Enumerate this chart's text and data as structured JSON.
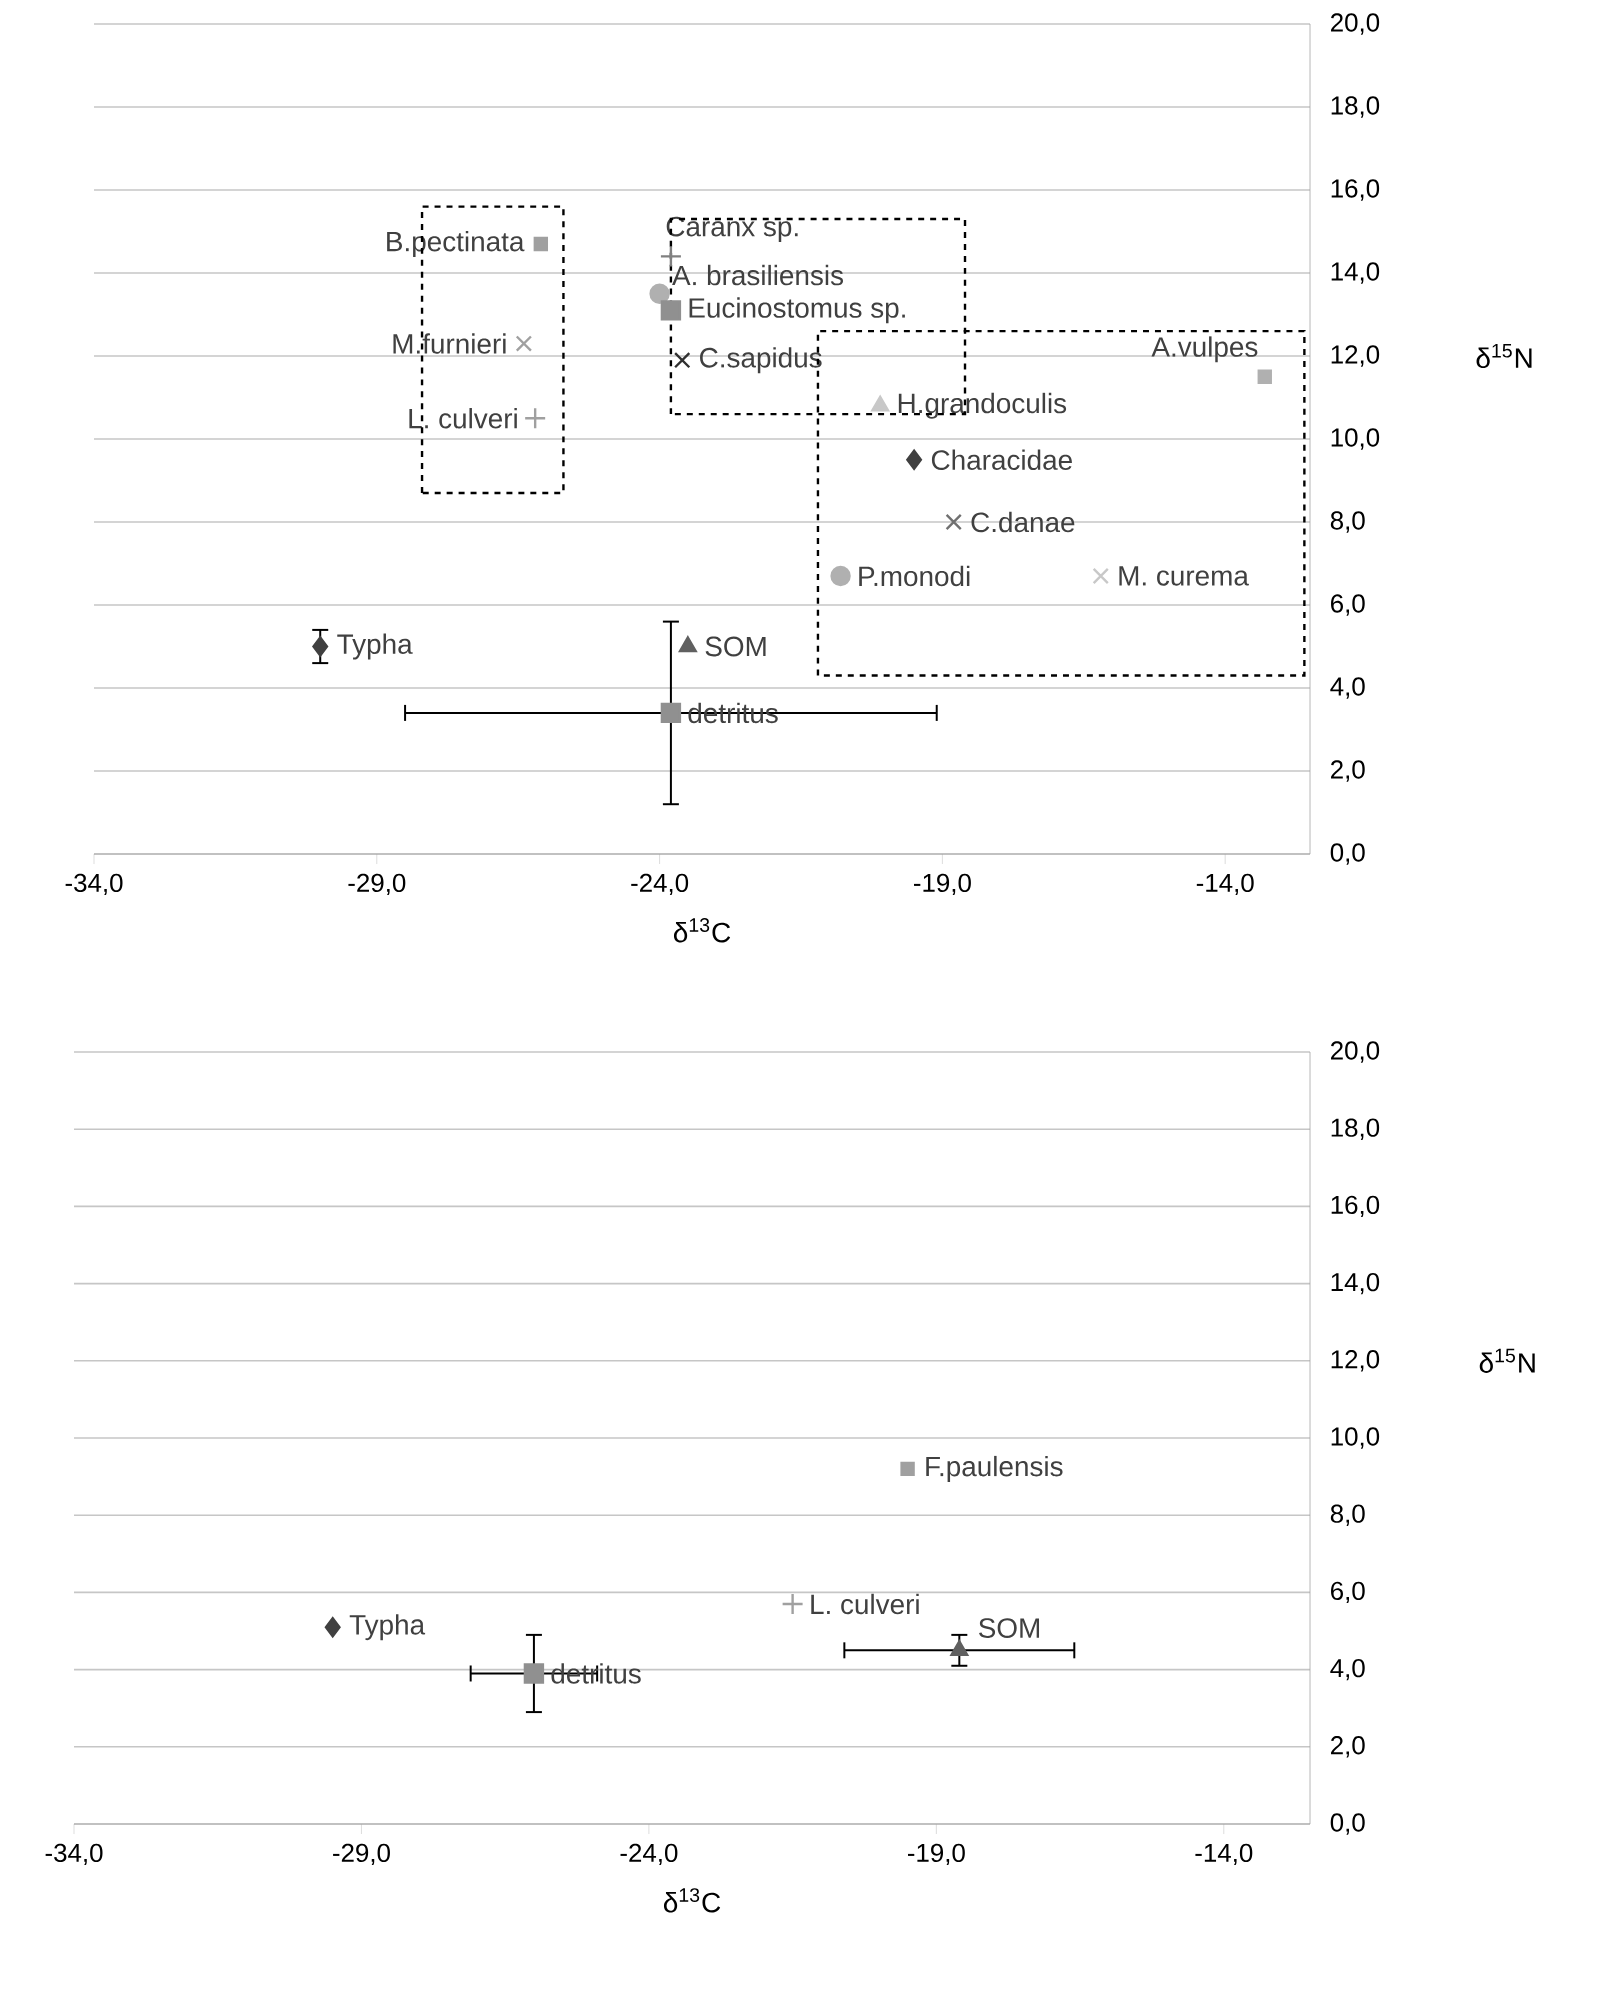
{
  "chart_data": [
    {
      "type": "scatter",
      "xlabel": "δ$^{13}$C",
      "ylabel": "δ$^{15}$N",
      "grid": "y",
      "xlim": [
        -34,
        -12.5
      ],
      "ylim": [
        0,
        20
      ],
      "xticks": [
        {
          "value": -34,
          "label": "-34,0"
        },
        {
          "value": -29,
          "label": "-29,0"
        },
        {
          "value": -24,
          "label": "-24,0"
        },
        {
          "value": -19,
          "label": "-19,0"
        },
        {
          "value": -14,
          "label": "-14,0"
        }
      ],
      "yticks": [
        {
          "value": 0,
          "label": "0,0"
        },
        {
          "value": 2,
          "label": "2,0"
        },
        {
          "value": 4,
          "label": "4,0"
        },
        {
          "value": 6,
          "label": "6,0"
        },
        {
          "value": 8,
          "label": "8,0"
        },
        {
          "value": 10,
          "label": "10,0"
        },
        {
          "value": 12,
          "label": "12,0"
        },
        {
          "value": 14,
          "label": "14,0"
        },
        {
          "value": 16,
          "label": "16,0"
        },
        {
          "value": 18,
          "label": "18,0"
        },
        {
          "value": 20,
          "label": "20,0"
        }
      ],
      "series": [
        {
          "name": "Typha",
          "color": "#404040",
          "marker": "diamond",
          "x": [
            -30.0
          ],
          "values": [
            5.0
          ],
          "errors": [
            0.4
          ]
        },
        {
          "name": "SOM",
          "color": "#606060",
          "marker": "triangle",
          "x": [
            -23.5
          ],
          "values": [
            5.0
          ]
        },
        {
          "name": "detritus",
          "color": "#909090",
          "marker": "square",
          "x": [
            -23.8
          ],
          "values": [
            3.4
          ],
          "errors": [
            2.2
          ],
          "xerrors": [
            4.7
          ]
        },
        {
          "name": "B.pectinata",
          "color": "#a0a0a0",
          "marker": "square",
          "x": [
            -26.1
          ],
          "values": [
            14.7
          ]
        },
        {
          "name": "M.furnieri",
          "color": "#a0a0a0",
          "marker": "cross",
          "x": [
            -26.4
          ],
          "values": [
            12.3
          ]
        },
        {
          "name": "L. culveri",
          "color": "#a0a0a0",
          "marker": "plus",
          "x": [
            -26.2
          ],
          "values": [
            10.5
          ]
        },
        {
          "name": "Caranx sp.",
          "color": "#808080",
          "marker": "plus",
          "x": [
            -23.8
          ],
          "values": [
            14.4
          ]
        },
        {
          "name": "A. brasiliensis",
          "color": "#b0b0b0",
          "marker": "circle",
          "x": [
            -24.0
          ],
          "values": [
            13.5
          ]
        },
        {
          "name": "Eucinostomus sp.",
          "color": "#909090",
          "marker": "square",
          "x": [
            -23.8
          ],
          "values": [
            13.1
          ]
        },
        {
          "name": "C.sapidus",
          "color": "#303030",
          "marker": "cross",
          "x": [
            -23.6
          ],
          "values": [
            11.9
          ]
        },
        {
          "name": "H.grandoculis",
          "color": "#c8c8c8",
          "marker": "triangle",
          "x": [
            -20.1
          ],
          "values": [
            10.8
          ]
        },
        {
          "name": "Characidae",
          "color": "#404040",
          "marker": "diamond",
          "x": [
            -19.5
          ],
          "values": [
            9.5
          ]
        },
        {
          "name": "C.danae",
          "color": "#707070",
          "marker": "cross",
          "x": [
            -18.8
          ],
          "values": [
            8.0
          ]
        },
        {
          "name": "P.monodi",
          "color": "#b0b0b0",
          "marker": "circle",
          "x": [
            -20.8
          ],
          "values": [
            6.7
          ]
        },
        {
          "name": "M. curema",
          "color": "#c8c8c8",
          "marker": "cross",
          "x": [
            -16.2
          ],
          "values": [
            6.7
          ]
        },
        {
          "name": "A.vulpes",
          "color": "#b0b0b0",
          "marker": "square",
          "x": [
            -13.3
          ],
          "values": [
            11.5
          ]
        }
      ]
    },
    {
      "type": "scatter",
      "xlabel": "δ$^{13}$C",
      "ylabel": "δ$^{15}$N",
      "grid": "y",
      "xlim": [
        -34,
        -12.5
      ],
      "ylim": [
        0,
        20
      ],
      "xticks": [
        {
          "value": -34,
          "label": "-34,0"
        },
        {
          "value": -29,
          "label": "-29,0"
        },
        {
          "value": -24,
          "label": "-24,0"
        },
        {
          "value": -19,
          "label": "-19,0"
        },
        {
          "value": -14,
          "label": "-14,0"
        }
      ],
      "yticks": [
        {
          "value": 0,
          "label": "0,0"
        },
        {
          "value": 2,
          "label": "2,0"
        },
        {
          "value": 4,
          "label": "4,0"
        },
        {
          "value": 6,
          "label": "6,0"
        },
        {
          "value": 8,
          "label": "8,0"
        },
        {
          "value": 10,
          "label": "10,0"
        },
        {
          "value": 12,
          "label": "12,0"
        },
        {
          "value": 14,
          "label": "14,0"
        },
        {
          "value": 16,
          "label": "16,0"
        },
        {
          "value": 18,
          "label": "18,0"
        },
        {
          "value": 20,
          "label": "20,0"
        }
      ],
      "series": [
        {
          "name": "Typha",
          "color": "#404040",
          "marker": "diamond",
          "x": [
            -29.5
          ],
          "values": [
            5.1
          ]
        },
        {
          "name": "detritus",
          "color": "#909090",
          "marker": "square",
          "x": [
            -26.0
          ],
          "values": [
            3.9
          ],
          "errors": [
            1.0
          ],
          "xerrors": [
            1.1
          ]
        },
        {
          "name": "L. culveri",
          "color": "#a0a0a0",
          "marker": "plus",
          "x": [
            -21.5
          ],
          "values": [
            5.7
          ]
        },
        {
          "name": "SOM",
          "color": "#606060",
          "marker": "triangle",
          "x": [
            -18.6
          ],
          "values": [
            4.5
          ],
          "errors": [
            0.4
          ],
          "xerrors": [
            2.0
          ]
        },
        {
          "name": "F.paulensis",
          "color": "#a0a0a0",
          "marker": "square",
          "x": [
            -19.5
          ],
          "values": [
            9.2
          ]
        }
      ]
    }
  ]
}
